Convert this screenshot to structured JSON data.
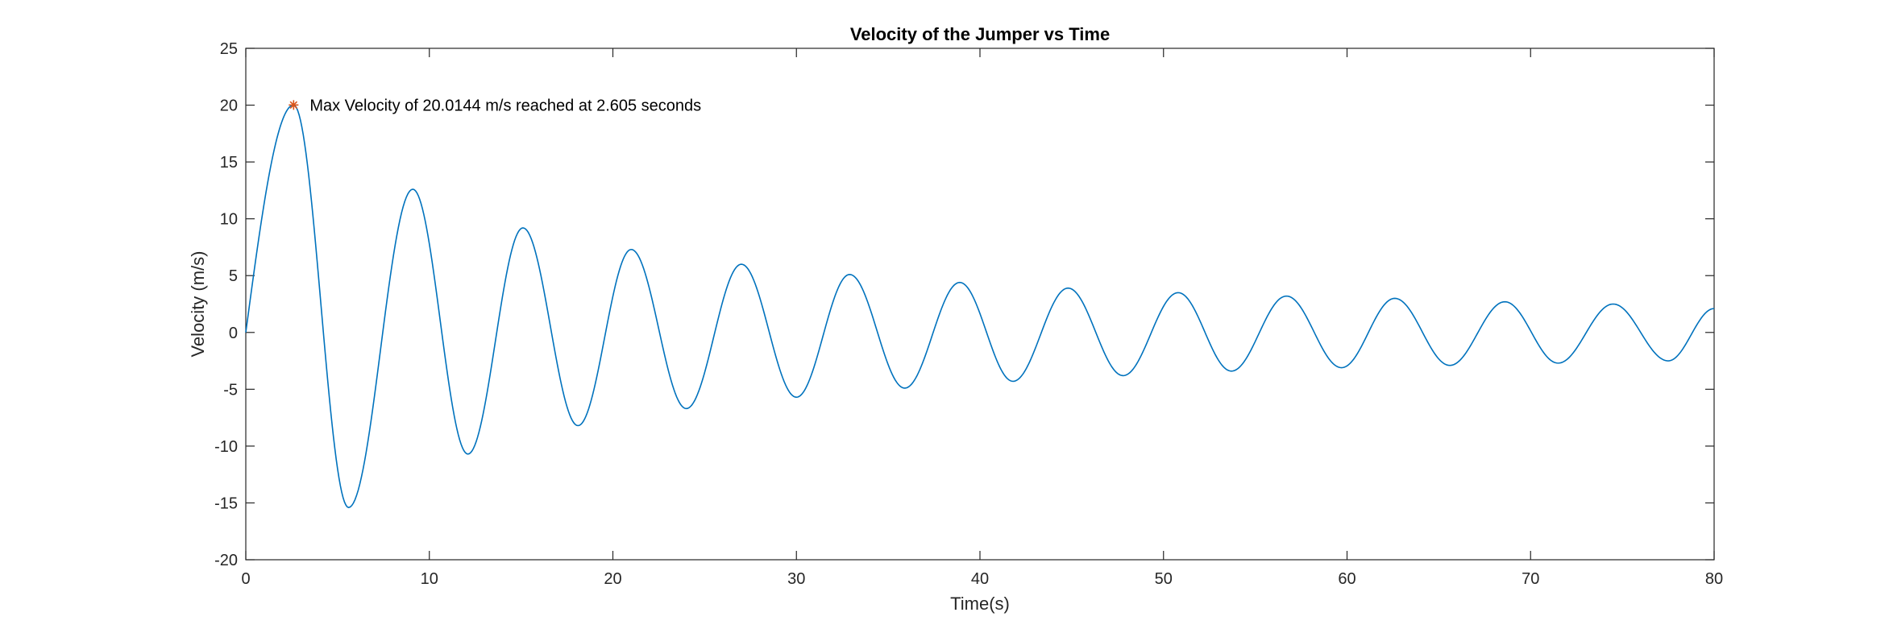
{
  "chart_data": {
    "type": "line",
    "title": "Velocity of the Jumper vs Time",
    "xlabel": "Time(s)",
    "ylabel": "Velocity (m/s)",
    "xlim": [
      0,
      80
    ],
    "ylim": [
      -20,
      25
    ],
    "xticks": [
      0,
      10,
      20,
      30,
      40,
      50,
      60,
      70,
      80
    ],
    "yticks": [
      -20,
      -15,
      -10,
      -5,
      0,
      5,
      10,
      15,
      20,
      25
    ],
    "grid": false,
    "legend": "none",
    "line_color": "#0072BD",
    "marker_color": "#D95319",
    "series": [
      {
        "x": [
          0,
          2.605,
          5.6,
          9.1,
          12.1,
          15.1,
          18.1,
          21.0,
          24.0,
          27.0,
          30.0,
          32.9,
          35.9,
          38.9,
          41.8,
          44.8,
          47.8,
          50.8,
          53.7,
          56.7,
          59.7,
          62.6,
          65.6,
          68.6,
          71.5,
          74.5,
          77.5,
          80
        ],
        "y": [
          0,
          20.0144,
          -15.4,
          12.6,
          -10.7,
          9.2,
          -8.2,
          7.3,
          -6.7,
          6.0,
          -5.7,
          5.1,
          -4.9,
          4.4,
          -4.3,
          3.9,
          -3.8,
          3.5,
          -3.4,
          3.2,
          -3.1,
          3.0,
          -2.9,
          2.7,
          -2.7,
          2.5,
          -2.5,
          2.1
        ]
      }
    ],
    "max_point": {
      "x": 2.605,
      "y": 20.0144
    },
    "annotation": "Max Velocity of 20.0144 m/s reached at 2.605 seconds"
  }
}
